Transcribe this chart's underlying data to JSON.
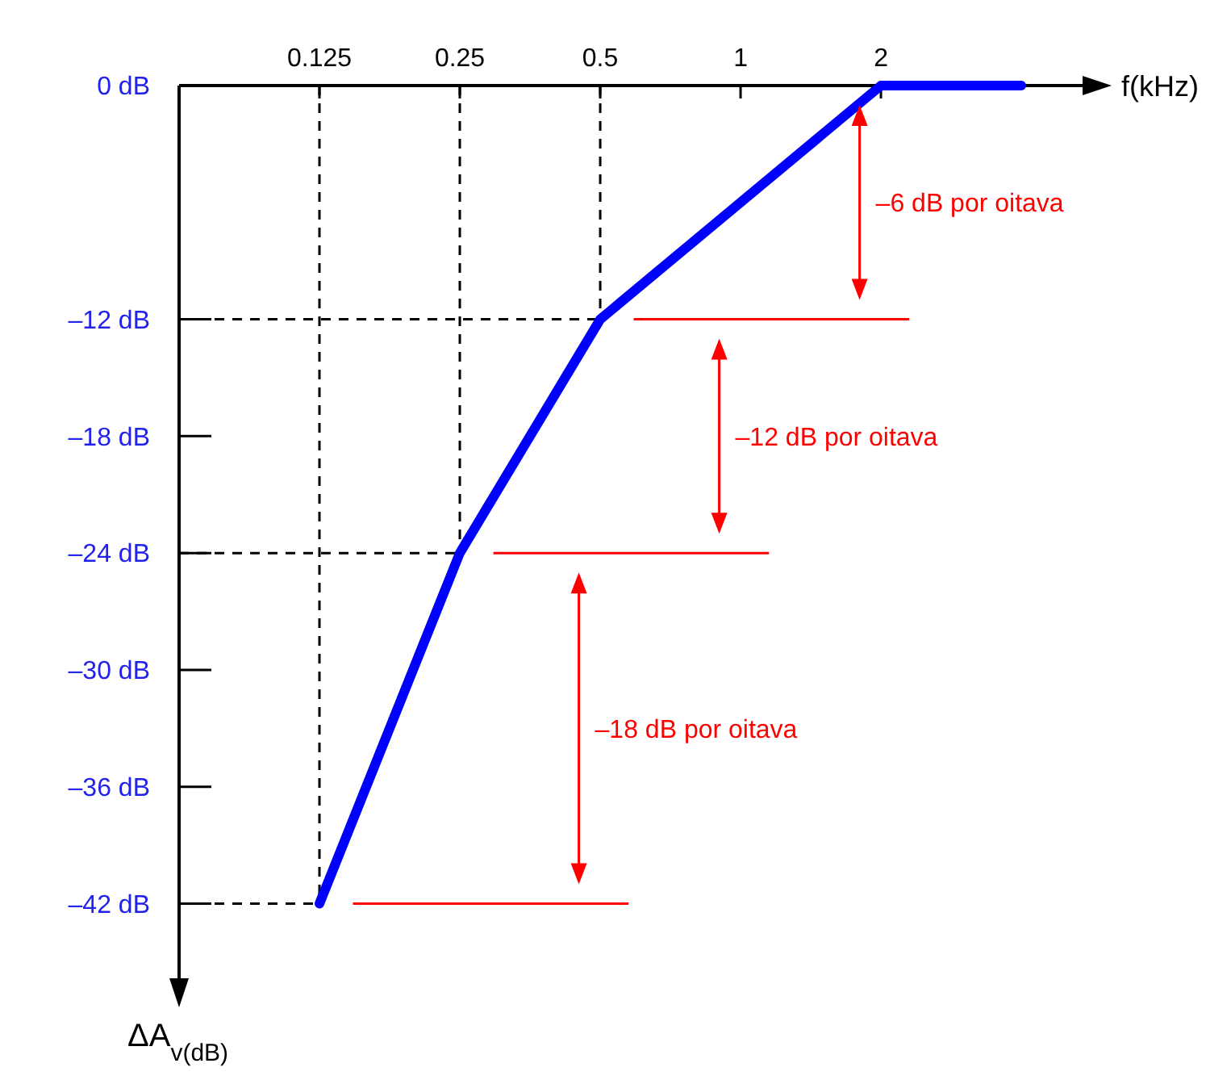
{
  "chart_data": {
    "type": "line",
    "xlabel": "f(kHz)",
    "ylabel": "ΔA$_{v(dB)}$",
    "x": [
      0.125,
      0.25,
      0.5,
      2,
      4
    ],
    "series": [
      {
        "color": "#0000ff",
        "values": [
          -42,
          -24,
          -12,
          0,
          0
        ]
      }
    ],
    "log": "x",
    "xlim": [
      0.0625,
      5.5
    ],
    "xticks": [
      0.125,
      0.25,
      0.5,
      1,
      2
    ],
    "ylim": [
      -46,
      0
    ],
    "yticks": [
      {
        "value": 0,
        "label": "0 dB"
      },
      {
        "value": -12,
        "label": "–12 dB"
      },
      {
        "value": -18,
        "label": "–18 dB"
      },
      {
        "value": -24,
        "label": "–24 dB"
      },
      {
        "value": -30,
        "label": "–30 dB"
      },
      {
        "value": -36,
        "label": "–36 dB"
      },
      {
        "value": -42,
        "label": "–42 dB"
      }
    ],
    "ref_lines": [
      {
        "axis": "y",
        "value": -12,
        "color": "#000000",
        "line_style": "dashed"
      },
      {
        "axis": "y",
        "value": -24,
        "color": "#000000",
        "line_style": "dashed"
      },
      {
        "axis": "y",
        "value": -42,
        "color": "#000000",
        "line_style": "dashed"
      },
      {
        "axis": "x",
        "value": 0.125,
        "color": "#000000",
        "line_style": "dashed"
      },
      {
        "axis": "x",
        "value": 0.25,
        "color": "#000000",
        "line_style": "dashed"
      },
      {
        "axis": "x",
        "value": 0.5,
        "color": "#000000",
        "line_style": "dashed"
      },
      {
        "axis": "y",
        "value": -12,
        "color": "#ff0000",
        "line_style": "solid"
      },
      {
        "axis": "y",
        "value": -24,
        "color": "#ff0000",
        "line_style": "solid"
      },
      {
        "axis": "y",
        "value": -42,
        "color": "#ff0000",
        "line_style": "solid"
      }
    ],
    "annotations": [
      "–6 dB por oitava",
      "–12 dB por oitava",
      "–18 dB por oitava"
    ],
    "grid": false,
    "marker": "none",
    "line_style": "solid"
  }
}
